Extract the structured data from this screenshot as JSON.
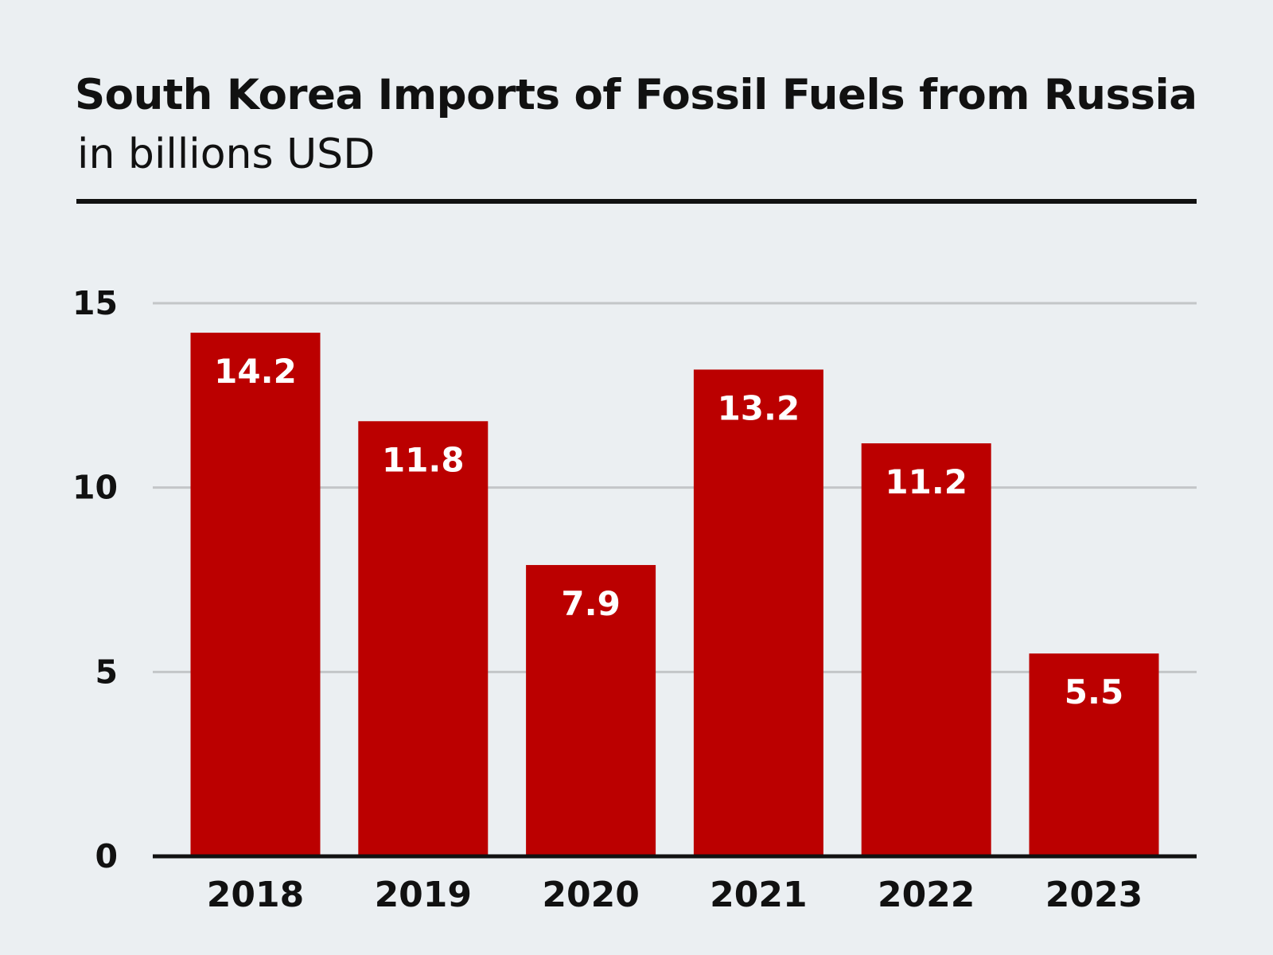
{
  "header": {
    "title": "South Korea Imports of Fossil Fuels from Russia",
    "subtitle": "in billions USD"
  },
  "colors": {
    "bar": "#bb0000",
    "bar_label": "#ffffff",
    "gridline": "#c3c6c8",
    "axis": "#111111",
    "text": "#111111",
    "background": "#ebeff2"
  },
  "chart_data": {
    "type": "bar",
    "title": "South Korea Imports of Fossil Fuels from Russia",
    "subtitle": "in billions USD",
    "xlabel": "",
    "ylabel": "",
    "categories": [
      "2018",
      "2019",
      "2020",
      "2021",
      "2022",
      "2023"
    ],
    "values": [
      14.2,
      11.8,
      7.9,
      13.2,
      11.2,
      5.5
    ],
    "value_labels": [
      "14.2",
      "11.8",
      "7.9",
      "13.2",
      "11.2",
      "5.5"
    ],
    "ylim": [
      0,
      15
    ],
    "yticks": [
      0,
      5,
      10,
      15
    ],
    "ytick_labels": [
      "0",
      "5",
      "10",
      "15"
    ],
    "grid": true,
    "legend": "none"
  }
}
